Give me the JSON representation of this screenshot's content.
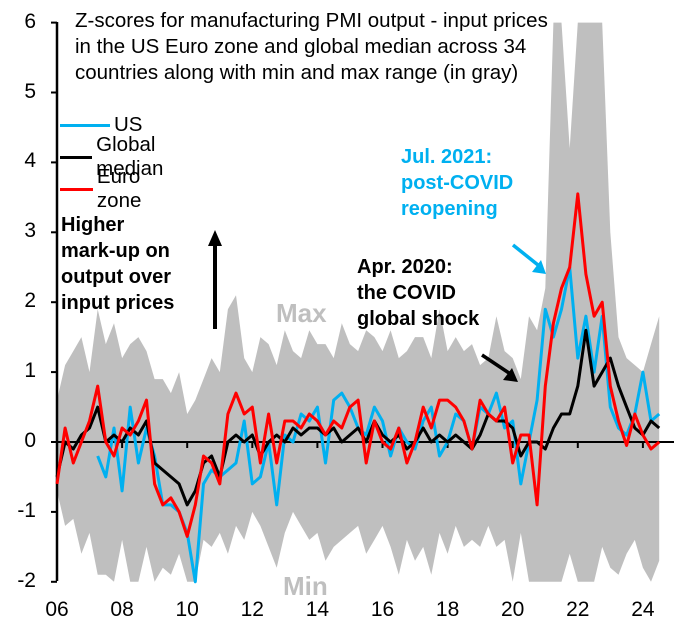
{
  "chart_data": {
    "type": "line",
    "title": "Z-scores for manufacturing PMI output - input prices in the US Euro zone and global median across 34 countries along with min and max range (in gray)",
    "title_lines": [
      "Z-scores for manufacturing PMI output - input prices",
      "in the US Euro zone and global median across 34",
      "countries along with min and max range (in gray)"
    ],
    "xlabel": "",
    "ylabel": "",
    "xlim": [
      2006,
      2024.5
    ],
    "ylim": [
      -2,
      6
    ],
    "x_ticks": [
      "06",
      "08",
      "10",
      "12",
      "14",
      "16",
      "18",
      "20",
      "22",
      "24"
    ],
    "y_ticks": [
      "6",
      "5",
      "4",
      "3",
      "2",
      "1",
      "0",
      "-1",
      "-2"
    ],
    "legend": {
      "placement": "top-left",
      "entries": [
        {
          "name": "US",
          "color": "#00b0f0"
        },
        {
          "name": "Global median",
          "color": "#000000"
        },
        {
          "name": "Euro zone",
          "color": "#ff0000"
        }
      ]
    },
    "annotations": {
      "left_note": [
        "Higher",
        "mark-up on",
        "output over",
        "input prices"
      ],
      "jul2021": [
        "Jul. 2021:",
        "post-COVID",
        "reopening"
      ],
      "apr2020": [
        "Apr. 2020:",
        "the COVID",
        "global shock"
      ],
      "max_label": "Max",
      "min_label": "Min"
    },
    "x": [
      2006.0,
      2006.25,
      2006.5,
      2006.75,
      2007.0,
      2007.25,
      2007.5,
      2007.75,
      2008.0,
      2008.25,
      2008.5,
      2008.75,
      2009.0,
      2009.25,
      2009.5,
      2009.75,
      2010.0,
      2010.25,
      2010.5,
      2010.75,
      2011.0,
      2011.25,
      2011.5,
      2011.75,
      2012.0,
      2012.25,
      2012.5,
      2012.75,
      2013.0,
      2013.25,
      2013.5,
      2013.75,
      2014.0,
      2014.25,
      2014.5,
      2014.75,
      2015.0,
      2015.25,
      2015.5,
      2015.75,
      2016.0,
      2016.25,
      2016.5,
      2016.75,
      2017.0,
      2017.25,
      2017.5,
      2017.75,
      2018.0,
      2018.25,
      2018.5,
      2018.75,
      2019.0,
      2019.25,
      2019.5,
      2019.75,
      2020.0,
      2020.25,
      2020.5,
      2020.75,
      2021.0,
      2021.25,
      2021.5,
      2021.75,
      2022.0,
      2022.25,
      2022.5,
      2022.75,
      2023.0,
      2023.25,
      2023.5,
      2023.75,
      2024.0,
      2024.25,
      2024.5
    ],
    "series": [
      {
        "name": "US",
        "color": "#00b0f0",
        "start_index": 5,
        "values": [
          null,
          null,
          null,
          null,
          null,
          -0.2,
          -0.5,
          0.2,
          -0.7,
          0.5,
          -0.3,
          0.2,
          -0.2,
          -0.9,
          -0.9,
          -1.0,
          -1.3,
          -2.0,
          -0.6,
          -0.4,
          -0.5,
          -0.4,
          -0.3,
          0.3,
          -0.6,
          -0.5,
          0.0,
          -0.9,
          0.1,
          0.0,
          0.4,
          0.3,
          0.5,
          -0.3,
          0.6,
          0.7,
          0.5,
          0.2,
          0.1,
          0.5,
          0.3,
          -0.2,
          0.2,
          0.0,
          -0.1,
          0.3,
          0.5,
          -0.2,
          0.0,
          0.4,
          0.3,
          -0.1,
          0.5,
          0.4,
          0.7,
          0.2,
          0.3,
          -0.6,
          0.0,
          0.6,
          1.9,
          1.5,
          1.9,
          2.5,
          1.2,
          1.8,
          1.0,
          1.8,
          0.5,
          0.2,
          0.1,
          0.4,
          1.0,
          0.3,
          0.4
        ]
      },
      {
        "name": "Global median",
        "color": "#000000",
        "values": [
          -0.5,
          0.0,
          -0.1,
          0.1,
          0.2,
          0.5,
          0.0,
          0.1,
          0.0,
          0.2,
          0.1,
          0.3,
          -0.3,
          -0.4,
          -0.5,
          -0.6,
          -0.9,
          -0.7,
          -0.3,
          -0.2,
          -0.5,
          0.0,
          0.1,
          0.0,
          0.1,
          -0.2,
          0.0,
          0.1,
          0.0,
          0.2,
          0.1,
          0.2,
          0.2,
          0.1,
          0.2,
          0.0,
          0.1,
          0.2,
          0.0,
          0.3,
          0.1,
          0.0,
          0.1,
          -0.1,
          0.0,
          0.2,
          0.0,
          0.1,
          0.0,
          0.1,
          0.0,
          -0.1,
          0.1,
          0.4,
          0.3,
          0.3,
          0.2,
          -0.2,
          0.0,
          0.0,
          -0.1,
          0.2,
          0.4,
          0.4,
          0.8,
          1.6,
          0.8,
          1.0,
          1.2,
          0.8,
          0.5,
          0.2,
          0.1,
          0.3,
          0.2
        ]
      },
      {
        "name": "Euro zone",
        "color": "#ff0000",
        "values": [
          -0.6,
          0.2,
          -0.3,
          0.0,
          0.3,
          0.8,
          0.0,
          -0.2,
          0.2,
          0.1,
          0.3,
          0.6,
          -0.6,
          -0.9,
          -0.8,
          -1.0,
          -1.35,
          -0.9,
          -0.2,
          -0.3,
          -0.6,
          0.4,
          0.7,
          0.4,
          0.5,
          -0.3,
          0.4,
          -0.3,
          0.3,
          0.3,
          0.2,
          0.4,
          0.3,
          0.1,
          0.3,
          0.2,
          0.5,
          0.6,
          -0.3,
          0.3,
          0.0,
          -0.1,
          0.2,
          -0.3,
          0.0,
          0.5,
          0.2,
          0.6,
          0.6,
          0.5,
          0.3,
          -0.1,
          0.6,
          0.4,
          0.3,
          0.5,
          -0.3,
          0.1,
          0.1,
          -0.9,
          0.8,
          1.7,
          2.2,
          2.5,
          3.55,
          2.4,
          1.8,
          2.0,
          0.8,
          0.3,
          -0.05,
          0.4,
          0.1,
          -0.1,
          0.0
        ]
      }
    ],
    "range_min": [
      -0.7,
      -1.2,
      -1.1,
      -1.6,
      -1.3,
      -1.9,
      -1.9,
      -2.0,
      -1.4,
      -2.0,
      -2.0,
      -1.5,
      -2.0,
      -1.8,
      -1.9,
      -1.6,
      -2.0,
      -2.0,
      -1.4,
      -1.5,
      -1.3,
      -1.6,
      -1.2,
      -1.4,
      -1.0,
      -1.2,
      -1.5,
      -1.8,
      -1.3,
      -1.0,
      -1.2,
      -1.4,
      -1.3,
      -1.7,
      -1.5,
      -1.4,
      -1.3,
      -1.2,
      -1.6,
      -1.4,
      -1.2,
      -1.5,
      -1.9,
      -1.4,
      -1.7,
      -1.5,
      -1.9,
      -1.3,
      -1.6,
      -1.2,
      -1.5,
      -1.4,
      -1.5,
      -1.2,
      -1.5,
      -1.4,
      -2.0,
      -1.3,
      -2.0,
      -2.0,
      -2.0,
      -2.0,
      -2.0,
      -1.6,
      -2.0,
      -2.0,
      -2.0,
      -1.5,
      -1.8,
      -1.9,
      -1.6,
      -1.4,
      -1.8,
      -2.0,
      -1.7
    ],
    "range_max": [
      0.6,
      1.1,
      1.3,
      1.5,
      1.0,
      1.9,
      1.4,
      1.7,
      1.2,
      1.4,
      1.5,
      1.3,
      0.9,
      0.9,
      0.7,
      1.0,
      0.4,
      0.6,
      0.9,
      1.2,
      1.0,
      1.9,
      2.1,
      1.2,
      1.0,
      1.5,
      1.4,
      1.1,
      1.6,
      1.3,
      1.2,
      1.6,
      1.4,
      1.4,
      1.2,
      1.7,
      1.4,
      1.3,
      1.6,
      1.5,
      1.3,
      1.6,
      1.2,
      1.3,
      1.5,
      1.5,
      1.2,
      1.9,
      1.3,
      1.5,
      1.3,
      1.4,
      1.1,
      1.2,
      1.8,
      1.3,
      1.2,
      0.9,
      1.8,
      1.6,
      2.2,
      6.0,
      6.0,
      4.2,
      6.0,
      6.0,
      6.0,
      6.0,
      3.0,
      1.5,
      1.2,
      1.1,
      1.0,
      1.4,
      1.8
    ]
  }
}
